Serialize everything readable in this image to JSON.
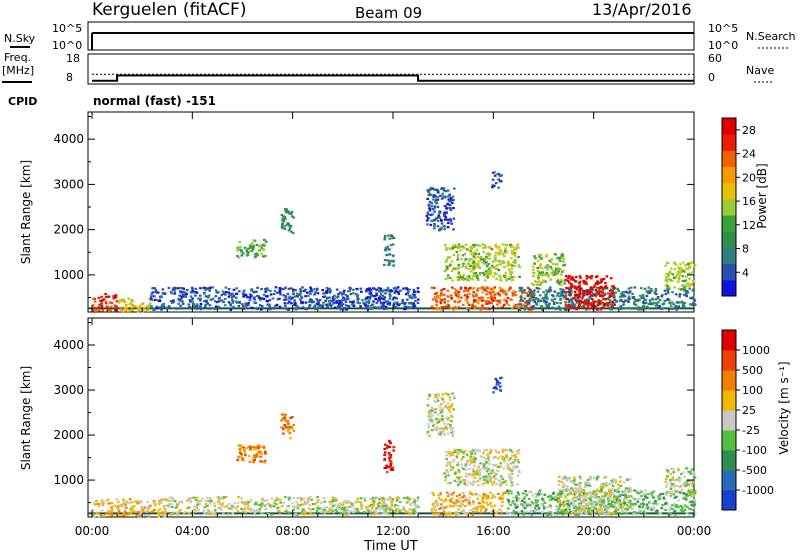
{
  "header": {
    "title": "Kerguelen (fitACF)",
    "beam": "Beam 09",
    "date": "13/Apr/2016"
  },
  "params_panel": {
    "nsky_label": "N.Sky",
    "nsearch_label": "N.Search",
    "noise_ticks": [
      "10^5",
      "10^0"
    ],
    "freq_label_top": "Freq.",
    "freq_label_unit": "[MHz]",
    "freq_ticks": [
      "18",
      "8"
    ],
    "nave_label": "Nave",
    "nave_ticks": [
      "60",
      "0"
    ],
    "cpid_label": "CPID",
    "cpid_text": "normal (fast) -151",
    "freq_steps_hours": [
      [
        0,
        8.5
      ],
      [
        1,
        10.5
      ],
      [
        13,
        10.5
      ],
      [
        13,
        8.5
      ],
      [
        24,
        8.5
      ]
    ],
    "nave_level": 18
  },
  "chart_data": [
    {
      "type": "heatmap",
      "name": "power-panel",
      "ylabel": "Slant Range [km]",
      "xlabel": "Time UT",
      "ylim": [
        180,
        4600
      ],
      "yticks": [
        "1000",
        "2000",
        "3000",
        "4000"
      ],
      "ytick_values": [
        1000,
        2000,
        3000,
        4000
      ],
      "xticks": [
        "00:00",
        "04:00",
        "08:00",
        "12:00",
        "16:00",
        "20:00",
        "00:00"
      ],
      "xtick_values": [
        0,
        4,
        8,
        12,
        16,
        20,
        24
      ],
      "colorbar": {
        "label": "Power [dB]",
        "ticks": [
          "4",
          "8",
          "12",
          "16",
          "20",
          "24",
          "28"
        ],
        "tick_values": [
          4,
          8,
          12,
          16,
          20,
          24,
          28
        ],
        "range": [
          0,
          30
        ],
        "colors": [
          "#1010e0",
          "#2a4fb0",
          "#2f7f7f",
          "#2f8f4f",
          "#3aa03a",
          "#9acd32",
          "#e8c000",
          "#f59a00",
          "#f06000",
          "#e82000",
          "#e00000"
        ]
      }
    },
    {
      "type": "heatmap",
      "name": "velocity-panel",
      "ylabel": "Slant Range [km]",
      "xlabel": "Time UT",
      "ylim": [
        180,
        4600
      ],
      "yticks": [
        "1000",
        "2000",
        "3000",
        "4000"
      ],
      "ytick_values": [
        1000,
        2000,
        3000,
        4000
      ],
      "xticks": [
        "00:00",
        "04:00",
        "08:00",
        "12:00",
        "16:00",
        "20:00",
        "00:00"
      ],
      "xtick_values": [
        0,
        4,
        8,
        12,
        16,
        20,
        24
      ],
      "colorbar": {
        "label": "Velocity [m s⁻¹]",
        "ticks": [
          "1000",
          "500",
          "100",
          "25",
          "-25",
          "-100",
          "-500",
          "-1000"
        ],
        "colors": [
          "#1a3fd0",
          "#2a6ab8",
          "#2f8f4f",
          "#55c040",
          "#c8c8c8",
          "#f0b800",
          "#f08000",
          "#f04000",
          "#e00000"
        ]
      }
    }
  ],
  "scatter_patches": {
    "power": [
      {
        "t0": 0.0,
        "t1": 1.0,
        "r0": 200,
        "r1": 600,
        "c": 9
      },
      {
        "t0": 1.0,
        "t1": 2.3,
        "r0": 200,
        "r1": 500,
        "c": 6
      },
      {
        "t0": 2.3,
        "t1": 13.0,
        "r0": 250,
        "r1": 750,
        "c": 1
      },
      {
        "t0": 5.7,
        "t1": 6.9,
        "r0": 1400,
        "r1": 1800,
        "c": 4
      },
      {
        "t0": 7.5,
        "t1": 8.0,
        "r0": 1950,
        "r1": 2500,
        "c": 3
      },
      {
        "t0": 11.6,
        "t1": 12.0,
        "r0": 1200,
        "r1": 1900,
        "c": 2
      },
      {
        "t0": 13.3,
        "t1": 14.4,
        "r0": 2000,
        "r1": 2950,
        "c": 1
      },
      {
        "t0": 14.0,
        "t1": 17.0,
        "r0": 900,
        "r1": 1700,
        "c": 5
      },
      {
        "t0": 13.5,
        "t1": 17.5,
        "r0": 250,
        "r1": 750,
        "c": 8
      },
      {
        "t0": 17.0,
        "t1": 24.0,
        "r0": 250,
        "r1": 750,
        "c": 2
      },
      {
        "t0": 18.8,
        "t1": 20.8,
        "r0": 250,
        "r1": 1000,
        "c": 10
      },
      {
        "t0": 17.5,
        "t1": 18.8,
        "r0": 800,
        "r1": 1500,
        "c": 5
      },
      {
        "t0": 22.8,
        "t1": 24.0,
        "r0": 700,
        "r1": 1300,
        "c": 5
      },
      {
        "t0": 15.9,
        "t1": 16.3,
        "r0": 2950,
        "r1": 3300,
        "c": 1
      }
    ],
    "velocity": [
      {
        "t0": 0.0,
        "t1": 3.0,
        "r0": 200,
        "r1": 600,
        "c": 5
      },
      {
        "t0": 3.0,
        "t1": 13.0,
        "r0": 250,
        "r1": 650,
        "c": 4
      },
      {
        "t0": 5.7,
        "t1": 6.9,
        "r0": 1400,
        "r1": 1800,
        "c": 6
      },
      {
        "t0": 7.5,
        "t1": 8.0,
        "r0": 1950,
        "r1": 2500,
        "c": 6
      },
      {
        "t0": 11.6,
        "t1": 12.0,
        "r0": 1200,
        "r1": 1900,
        "c": 8
      },
      {
        "t0": 13.3,
        "t1": 14.4,
        "r0": 2000,
        "r1": 2950,
        "c": 4
      },
      {
        "t0": 14.0,
        "t1": 17.0,
        "r0": 900,
        "r1": 1700,
        "c": 4
      },
      {
        "t0": 13.5,
        "t1": 16.5,
        "r0": 250,
        "r1": 750,
        "c": 5
      },
      {
        "t0": 16.5,
        "t1": 24.0,
        "r0": 250,
        "r1": 800,
        "c": 3
      },
      {
        "t0": 18.5,
        "t1": 21.5,
        "r0": 250,
        "r1": 1100,
        "c": 4
      },
      {
        "t0": 22.8,
        "t1": 24.0,
        "r0": 700,
        "r1": 1300,
        "c": 4
      },
      {
        "t0": 15.9,
        "t1": 16.3,
        "r0": 2950,
        "r1": 3300,
        "c": 0
      }
    ]
  }
}
